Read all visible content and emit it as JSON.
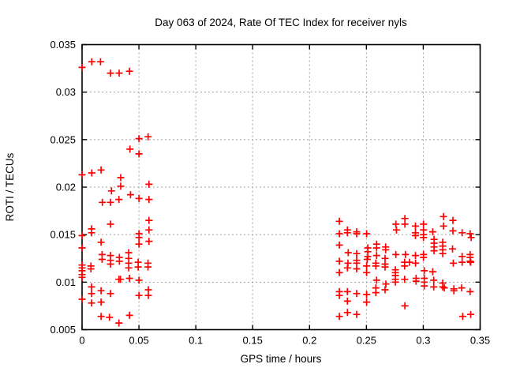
{
  "page": {
    "background": "#ffffff"
  },
  "chart_data": {
    "type": "scatter",
    "title": "Day 063 of 2024, Rate Of TEC Index for receiver nyls",
    "xlabel": "GPS time / hours",
    "ylabel": "ROTI / TECUs",
    "xlim": [
      0,
      0.35
    ],
    "ylim": [
      0.005,
      0.035
    ],
    "xticks": {
      "values": [
        0,
        0.05,
        0.1,
        0.15,
        0.2,
        0.25,
        0.3,
        0.35
      ],
      "labels": [
        "0",
        "0.05",
        "0.1",
        "0.15",
        "0.2",
        "0.25",
        "0.3",
        "0.35"
      ]
    },
    "yticks": {
      "values": [
        0.005,
        0.01,
        0.015,
        0.02,
        0.025,
        0.03,
        0.035
      ],
      "labels": [
        "0.005",
        "0.01",
        "0.015",
        "0.02",
        "0.025",
        "0.03",
        "0.035"
      ]
    },
    "grid": true,
    "legend_position": "none",
    "marker": {
      "shape": "plus",
      "color": "#ff0000",
      "size": 9
    },
    "grid_color": "#9e9e9e",
    "border_color": "#000000",
    "series": [
      {
        "name": "ROTI",
        "points": [
          [
            0.0,
            0.0326
          ],
          [
            0.0085,
            0.0332
          ],
          [
            0.0162,
            0.0332
          ],
          [
            0.025,
            0.032
          ],
          [
            0.0326,
            0.032
          ],
          [
            0.0417,
            0.0322
          ],
          [
            0.05,
            0.0251
          ],
          [
            0.0581,
            0.0253
          ],
          [
            0.0421,
            0.024
          ],
          [
            0.05,
            0.0235
          ],
          [
            0.0167,
            0.0218
          ],
          [
            0.0085,
            0.0215
          ],
          [
            0.0,
            0.0213
          ],
          [
            0.034,
            0.021
          ],
          [
            0.034,
            0.0201
          ],
          [
            0.0588,
            0.0203
          ],
          [
            0.0259,
            0.0196
          ],
          [
            0.0426,
            0.0192
          ],
          [
            0.05,
            0.0188
          ],
          [
            0.0588,
            0.0187
          ],
          [
            0.0324,
            0.0187
          ],
          [
            0.0178,
            0.0184
          ],
          [
            0.025,
            0.0184
          ],
          [
            0.025,
            0.0161
          ],
          [
            0.0588,
            0.0165
          ],
          [
            0.0588,
            0.0155
          ],
          [
            0.0083,
            0.0156
          ],
          [
            0.0083,
            0.0152
          ],
          [
            0.05,
            0.0151
          ],
          [
            0.05,
            0.0147
          ],
          [
            0.05,
            0.014
          ],
          [
            0.0588,
            0.0143
          ],
          [
            0.0167,
            0.0142
          ],
          [
            0.0,
            0.0149
          ],
          [
            0.0,
            0.0136
          ],
          [
            0.0176,
            0.0129
          ],
          [
            0.0176,
            0.0124
          ],
          [
            0.025,
            0.0128
          ],
          [
            0.025,
            0.0123
          ],
          [
            0.025,
            0.0119
          ],
          [
            0.0328,
            0.0126
          ],
          [
            0.0328,
            0.0122
          ],
          [
            0.041,
            0.0131
          ],
          [
            0.041,
            0.0125
          ],
          [
            0.041,
            0.012
          ],
          [
            0.041,
            0.0115
          ],
          [
            0.0493,
            0.0121
          ],
          [
            0.0493,
            0.0116
          ],
          [
            0.058,
            0.012
          ],
          [
            0.058,
            0.0116
          ],
          [
            0.0,
            0.0118
          ],
          [
            0.0,
            0.0115
          ],
          [
            0.0,
            0.0112
          ],
          [
            0.0,
            0.0108
          ],
          [
            0.0,
            0.0105
          ],
          [
            0.0078,
            0.0117
          ],
          [
            0.0078,
            0.0114
          ],
          [
            0.0324,
            0.0103
          ],
          [
            0.0338,
            0.0103
          ],
          [
            0.0417,
            0.0104
          ],
          [
            0.05,
            0.0102
          ],
          [
            0.0083,
            0.0095
          ],
          [
            0.0083,
            0.0088
          ],
          [
            0.0167,
            0.0091
          ],
          [
            0.025,
            0.0088
          ],
          [
            0.0583,
            0.0092
          ],
          [
            0.05,
            0.0086
          ],
          [
            0.0583,
            0.0086
          ],
          [
            0.0,
            0.0082
          ],
          [
            0.0083,
            0.0078
          ],
          [
            0.0167,
            0.0079
          ],
          [
            0.0167,
            0.0064
          ],
          [
            0.0241,
            0.0063
          ],
          [
            0.0324,
            0.0057
          ],
          [
            0.0417,
            0.0065
          ],
          [
            0.2262,
            0.0164
          ],
          [
            0.2262,
            0.0151
          ],
          [
            0.2333,
            0.0155
          ],
          [
            0.2333,
            0.0152
          ],
          [
            0.2414,
            0.0153
          ],
          [
            0.2414,
            0.0151
          ],
          [
            0.2502,
            0.0151
          ],
          [
            0.2262,
            0.0139
          ],
          [
            0.234,
            0.0131
          ],
          [
            0.2414,
            0.013
          ],
          [
            0.2512,
            0.0136
          ],
          [
            0.2512,
            0.0132
          ],
          [
            0.2512,
            0.0127
          ],
          [
            0.259,
            0.014
          ],
          [
            0.259,
            0.0136
          ],
          [
            0.259,
            0.0128
          ],
          [
            0.2669,
            0.0137
          ],
          [
            0.2669,
            0.0134
          ],
          [
            0.2664,
            0.0125
          ],
          [
            0.2759,
            0.0161
          ],
          [
            0.2764,
            0.0155
          ],
          [
            0.2838,
            0.0167
          ],
          [
            0.2838,
            0.0161
          ],
          [
            0.2759,
            0.0129
          ],
          [
            0.2843,
            0.0129
          ],
          [
            0.2262,
            0.0122
          ],
          [
            0.2338,
            0.012
          ],
          [
            0.2414,
            0.0123
          ],
          [
            0.2414,
            0.012
          ],
          [
            0.2507,
            0.0124
          ],
          [
            0.2931,
            0.0159
          ],
          [
            0.3002,
            0.0161
          ],
          [
            0.3002,
            0.0155
          ],
          [
            0.2931,
            0.0152
          ],
          [
            0.2931,
            0.0149
          ],
          [
            0.3002,
            0.015
          ],
          [
            0.3002,
            0.0147
          ],
          [
            0.3083,
            0.0153
          ],
          [
            0.3178,
            0.0169
          ],
          [
            0.3178,
            0.0159
          ],
          [
            0.3261,
            0.0165
          ],
          [
            0.3261,
            0.0154
          ],
          [
            0.3342,
            0.0152
          ],
          [
            0.3412,
            0.0151
          ],
          [
            0.3421,
            0.0147
          ],
          [
            0.3095,
            0.0145
          ],
          [
            0.3095,
            0.0141
          ],
          [
            0.3095,
            0.0137
          ],
          [
            0.3095,
            0.0133
          ],
          [
            0.3171,
            0.0142
          ],
          [
            0.3171,
            0.0138
          ],
          [
            0.3171,
            0.0134
          ],
          [
            0.3171,
            0.013
          ],
          [
            0.3257,
            0.0135
          ],
          [
            0.2931,
            0.0128
          ],
          [
            0.3002,
            0.0129
          ],
          [
            0.3002,
            0.0126
          ],
          [
            0.3342,
            0.0127
          ],
          [
            0.3412,
            0.0129
          ],
          [
            0.3412,
            0.0126
          ],
          [
            0.3412,
            0.0122
          ],
          [
            0.2262,
            0.011
          ],
          [
            0.2333,
            0.0115
          ],
          [
            0.2414,
            0.0114
          ],
          [
            0.2502,
            0.0117
          ],
          [
            0.2502,
            0.011
          ],
          [
            0.2583,
            0.012
          ],
          [
            0.2583,
            0.0117
          ],
          [
            0.2664,
            0.0119
          ],
          [
            0.2664,
            0.0116
          ],
          [
            0.259,
            0.0102
          ],
          [
            0.2671,
            0.0098
          ],
          [
            0.2755,
            0.0113
          ],
          [
            0.2755,
            0.011
          ],
          [
            0.2755,
            0.0107
          ],
          [
            0.2755,
            0.0103
          ],
          [
            0.2755,
            0.01
          ],
          [
            0.2836,
            0.0121
          ],
          [
            0.2836,
            0.0117
          ],
          [
            0.2836,
            0.0103
          ],
          [
            0.2262,
            0.009
          ],
          [
            0.2262,
            0.0086
          ],
          [
            0.2333,
            0.009
          ],
          [
            0.2333,
            0.008
          ],
          [
            0.2414,
            0.0088
          ],
          [
            0.2502,
            0.0087
          ],
          [
            0.2502,
            0.0079
          ],
          [
            0.2583,
            0.0094
          ],
          [
            0.2583,
            0.0089
          ],
          [
            0.2664,
            0.0092
          ],
          [
            0.2838,
            0.0075
          ],
          [
            0.2262,
            0.0064
          ],
          [
            0.2333,
            0.0068
          ],
          [
            0.2414,
            0.0066
          ],
          [
            0.2879,
            0.0121
          ],
          [
            0.2932,
            0.012
          ],
          [
            0.3009,
            0.0112
          ],
          [
            0.3083,
            0.0111
          ],
          [
            0.3009,
            0.0104
          ],
          [
            0.3009,
            0.01
          ],
          [
            0.2937,
            0.0104
          ],
          [
            0.2937,
            0.0101
          ],
          [
            0.3009,
            0.0096
          ],
          [
            0.3092,
            0.0102
          ],
          [
            0.3092,
            0.0095
          ],
          [
            0.3171,
            0.0099
          ],
          [
            0.3171,
            0.0095
          ],
          [
            0.3185,
            0.0094
          ],
          [
            0.3264,
            0.012
          ],
          [
            0.3342,
            0.0121
          ],
          [
            0.3417,
            0.0121
          ],
          [
            0.3269,
            0.0093
          ],
          [
            0.3269,
            0.0091
          ],
          [
            0.3338,
            0.0094
          ],
          [
            0.3412,
            0.009
          ],
          [
            0.3347,
            0.0064
          ],
          [
            0.3417,
            0.0066
          ]
        ]
      }
    ]
  }
}
